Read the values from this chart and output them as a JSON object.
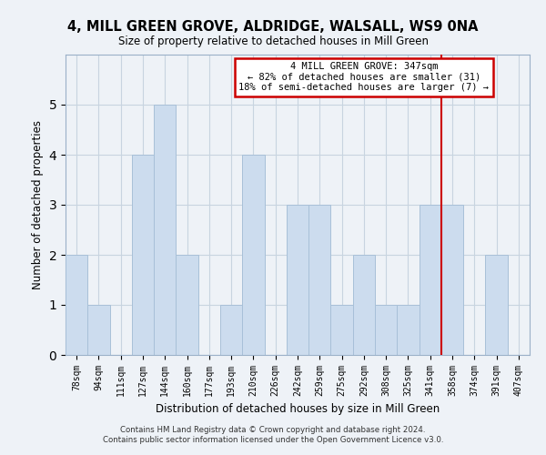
{
  "title": "4, MILL GREEN GROVE, ALDRIDGE, WALSALL, WS9 0NA",
  "subtitle": "Size of property relative to detached houses in Mill Green",
  "xlabel": "Distribution of detached houses by size in Mill Green",
  "ylabel": "Number of detached properties",
  "footer1": "Contains HM Land Registry data © Crown copyright and database right 2024.",
  "footer2": "Contains public sector information licensed under the Open Government Licence v3.0.",
  "categories": [
    "78sqm",
    "94sqm",
    "111sqm",
    "127sqm",
    "144sqm",
    "160sqm",
    "177sqm",
    "193sqm",
    "210sqm",
    "226sqm",
    "242sqm",
    "259sqm",
    "275sqm",
    "292sqm",
    "308sqm",
    "325sqm",
    "341sqm",
    "358sqm",
    "374sqm",
    "391sqm",
    "407sqm"
  ],
  "values": [
    2,
    1,
    0,
    4,
    5,
    2,
    0,
    1,
    4,
    0,
    3,
    3,
    1,
    2,
    1,
    1,
    3,
    3,
    0,
    2,
    0
  ],
  "bar_color": "#ccdcee",
  "bar_edge_color": "#a8c0d8",
  "grid_color": "#c8d4e0",
  "background_color": "#eef2f7",
  "annotation_text": "4 MILL GREEN GROVE: 347sqm\n← 82% of detached houses are smaller (31)\n18% of semi-detached houses are larger (7) →",
  "annotation_box_facecolor": "#ffffff",
  "annotation_box_edge_color": "#cc0000",
  "vline_color": "#cc0000",
  "vline_x": 16.5,
  "ylim": [
    0,
    6
  ],
  "yticks": [
    0,
    1,
    2,
    3,
    4,
    5,
    6
  ]
}
